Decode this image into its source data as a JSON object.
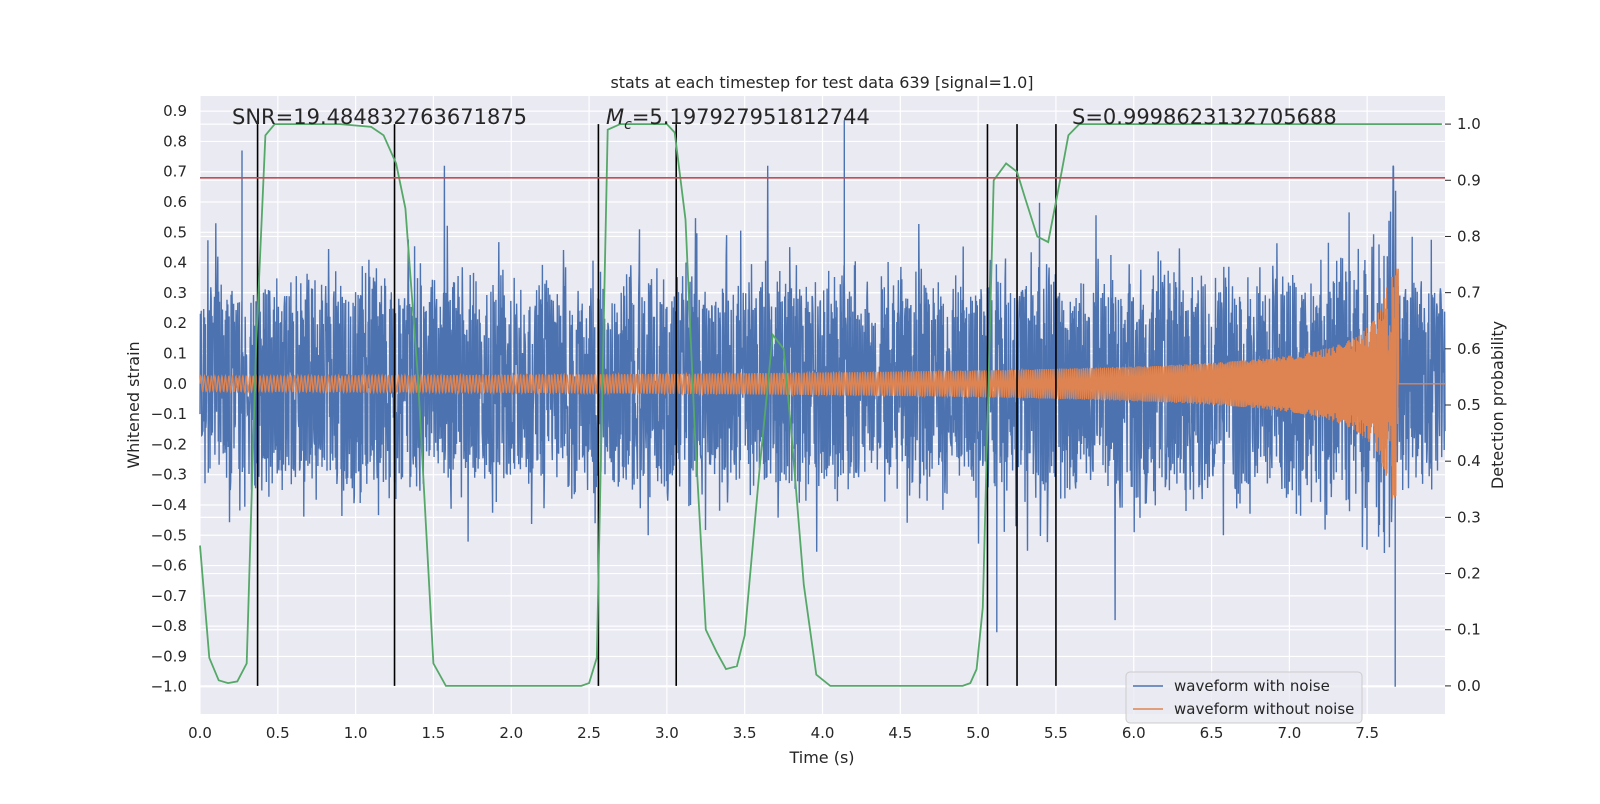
{
  "chart_data": {
    "type": "line",
    "title": "stats at each timestep for test data 639 [signal=1.0]",
    "xlabel": "Time (s)",
    "ylabel": "Whitened strain",
    "y2label": "Detection probability",
    "xlim": [
      0.0,
      8.0
    ],
    "ylim": [
      -1.09,
      0.95
    ],
    "y2lim": [
      -0.05,
      1.05
    ],
    "x_ticks": [
      "0.0",
      "0.5",
      "1.0",
      "1.5",
      "2.0",
      "2.5",
      "3.0",
      "3.5",
      "4.0",
      "4.5",
      "5.0",
      "5.5",
      "6.0",
      "6.5",
      "7.0",
      "7.5"
    ],
    "y_ticks": [
      "0.9",
      "0.8",
      "0.7",
      "0.6",
      "0.5",
      "0.4",
      "0.3",
      "0.2",
      "0.1",
      "0.0",
      "−0.1",
      "−0.2",
      "−0.3",
      "−0.4",
      "−0.5",
      "−0.6",
      "−0.7",
      "−0.8",
      "−0.9",
      "−1.0"
    ],
    "y2_ticks": [
      "1.0",
      "0.9",
      "0.8",
      "0.7",
      "0.6",
      "0.5",
      "0.4",
      "0.3",
      "0.2",
      "0.1",
      "0.0"
    ],
    "annotations": {
      "snr": "SNR=19.484832763671875",
      "mc_symbol": "M",
      "mc_sub": "c",
      "mc_value": "=5.197927951812744",
      "s": "S=0.9998623132705688"
    },
    "threshold_y": 0.68,
    "vertical_lines_x": [
      0.37,
      1.25,
      2.56,
      3.06,
      5.06,
      5.25,
      5.5
    ],
    "series": [
      {
        "name": "waveform with noise",
        "color": "#4c72b0",
        "kind": "noise",
        "typical_amplitude": 0.42,
        "spikes": [
          {
            "x": 0.27,
            "y": 0.77
          },
          {
            "x": 4.14,
            "y": 0.87
          },
          {
            "x": 7.68,
            "y": -1.0
          },
          {
            "x": 5.12,
            "y": -0.82
          }
        ]
      },
      {
        "name": "waveform without noise",
        "color": "#dd8452",
        "kind": "chirp",
        "start_amplitude": 0.025,
        "peak_amplitude": 0.38,
        "merger_time": 7.7
      },
      {
        "name": "detection probability",
        "color": "#55a868",
        "axis": "right",
        "x": [
          0.0,
          0.06,
          0.12,
          0.18,
          0.24,
          0.3,
          0.36,
          0.42,
          0.48,
          0.55,
          0.7,
          0.9,
          1.1,
          1.18,
          1.26,
          1.32,
          1.4,
          1.5,
          1.58,
          1.7,
          2.0,
          2.3,
          2.45,
          2.5,
          2.55,
          2.62,
          2.7,
          2.85,
          3.0,
          3.05,
          3.12,
          3.18,
          3.25,
          3.32,
          3.38,
          3.45,
          3.5,
          3.6,
          3.68,
          3.75,
          3.8,
          3.88,
          3.96,
          4.05,
          4.3,
          4.6,
          4.9,
          4.95,
          4.99,
          5.03,
          5.1,
          5.18,
          5.25,
          5.3,
          5.38,
          5.45,
          5.52,
          5.58,
          5.65,
          5.8,
          6.2,
          6.8,
          7.4,
          7.98
        ],
        "values": [
          0.25,
          0.05,
          0.01,
          0.005,
          0.008,
          0.04,
          0.6,
          0.98,
          1.0,
          1.0,
          1.0,
          1.0,
          0.995,
          0.98,
          0.93,
          0.85,
          0.55,
          0.04,
          0.0,
          0.0,
          0.0,
          0.0,
          0.0,
          0.005,
          0.05,
          0.99,
          1.0,
          1.0,
          1.0,
          0.985,
          0.83,
          0.45,
          0.1,
          0.06,
          0.03,
          0.035,
          0.09,
          0.4,
          0.625,
          0.6,
          0.45,
          0.18,
          0.02,
          0.0,
          0.0,
          0.0,
          0.0,
          0.005,
          0.03,
          0.14,
          0.9,
          0.93,
          0.915,
          0.87,
          0.8,
          0.79,
          0.89,
          0.98,
          1.0,
          1.0,
          1.0,
          1.0,
          1.0,
          1.0
        ]
      }
    ],
    "legend": {
      "position": "lower-right",
      "entries": [
        "waveform with noise",
        "waveform without noise"
      ]
    }
  }
}
